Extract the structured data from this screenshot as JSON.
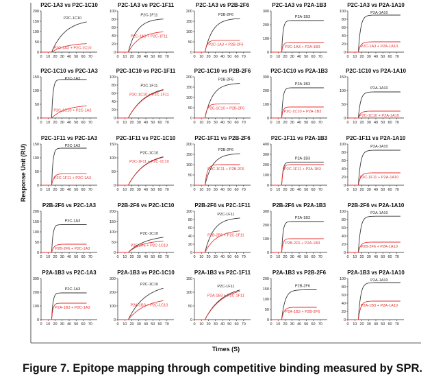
{
  "figure": {
    "y_axis_title": "Response Unit (RU)",
    "x_axis_title": "Times (S)",
    "caption": "Figure 7. Epitope mapping through competitive binding measured by SPR."
  },
  "chart_data": [
    {
      "type": "line",
      "title": "P2C-1A3 vs P2C-1C10",
      "xlim": [
        0,
        80
      ],
      "xticks": [
        0,
        10,
        20,
        30,
        40,
        50,
        60,
        70
      ],
      "ylim": [
        0,
        200
      ],
      "yticks": [
        0,
        50,
        100,
        150,
        200
      ],
      "series": [
        {
          "name": "P2C-1C10",
          "color": "#333333",
          "plateau": 160,
          "rate": 0.05,
          "end": 65
        },
        {
          "name": "P2C-1A3 + P2C-1C10",
          "color": "#e8312f",
          "plateau": 45,
          "rate": 0.05,
          "end": 65
        }
      ]
    },
    {
      "type": "line",
      "title": "P2C-1A3 vs P2C-1F11",
      "xlim": [
        0,
        80
      ],
      "xticks": [
        0,
        10,
        20,
        30,
        40,
        50,
        60,
        70
      ],
      "ylim": [
        0,
        100
      ],
      "yticks": [
        0,
        20,
        40,
        60,
        80,
        100
      ],
      "series": [
        {
          "name": "P2C-1F11",
          "color": "#333333",
          "plateau": 82,
          "rate": 0.08,
          "end": 65
        },
        {
          "name": "P2C-1A3 + P2C-1F11",
          "color": "#e8312f",
          "plateau": 52,
          "rate": 0.06,
          "end": 65
        }
      ]
    },
    {
      "type": "line",
      "title": "P2C-1A3 vs P2B-2F6",
      "xlim": [
        0,
        80
      ],
      "xticks": [
        0,
        10,
        20,
        30,
        40,
        50,
        60,
        70
      ],
      "ylim": [
        0,
        200
      ],
      "yticks": [
        0,
        50,
        100,
        150,
        200
      ],
      "series": [
        {
          "name": "P2B-2F6",
          "color": "#333333",
          "plateau": 165,
          "rate": 0.09,
          "end": 65
        },
        {
          "name": "P2C-1A3 + P2B-2F6",
          "color": "#e8312f",
          "plateau": 58,
          "rate": 0.3,
          "end": 65
        }
      ]
    },
    {
      "type": "line",
      "title": "P2C-1A3 vs P2A-1B3",
      "xlim": [
        0,
        80
      ],
      "xticks": [
        0,
        10,
        20,
        30,
        40,
        50,
        60,
        70
      ],
      "ylim": [
        0,
        300
      ],
      "yticks": [
        0,
        100,
        200,
        300
      ],
      "series": [
        {
          "name": "P2A-1B3",
          "color": "#333333",
          "plateau": 230,
          "rate": 0.5,
          "end": 75
        },
        {
          "name": "P2C-1A3 + P2A-1B3",
          "color": "#e8312f",
          "plateau": 70,
          "rate": 0.5,
          "end": 75
        }
      ]
    },
    {
      "type": "line",
      "title": "P2C-1A3 vs P2A-1A10",
      "xlim": [
        0,
        80
      ],
      "xticks": [
        0,
        10,
        20,
        30,
        40,
        50,
        60,
        70
      ],
      "ylim": [
        0,
        100
      ],
      "yticks": [
        0,
        20,
        40,
        60,
        80,
        100
      ],
      "series": [
        {
          "name": "P2A-1A10",
          "color": "#333333",
          "plateau": 90,
          "rate": 0.3,
          "end": 75
        },
        {
          "name": "P2C-1A3 + P2A-1A10",
          "color": "#e8312f",
          "plateau": 25,
          "rate": 0.3,
          "end": 75
        }
      ]
    },
    {
      "type": "line",
      "title": "P2C-1C10 vs P2C-1A3",
      "xlim": [
        0,
        80
      ],
      "xticks": [
        0,
        10,
        20,
        30,
        40,
        50,
        60,
        70
      ],
      "ylim": [
        0,
        150
      ],
      "yticks": [
        0,
        50,
        100,
        150
      ],
      "series": [
        {
          "name": "P2C-1A3",
          "color": "#333333",
          "plateau": 140,
          "rate": 0.5,
          "end": 65
        },
        {
          "name": "P2C-1C10 + P2C-1A3",
          "color": "#e8312f",
          "plateau": 48,
          "rate": 0.05,
          "end": 65
        }
      ]
    },
    {
      "type": "line",
      "title": "P2C-1C10 vs P2C-1F11",
      "xlim": [
        0,
        80
      ],
      "xticks": [
        0,
        10,
        20,
        30,
        40,
        50,
        60,
        70
      ],
      "ylim": [
        0,
        100
      ],
      "yticks": [
        0,
        20,
        40,
        60,
        80,
        100
      ],
      "series": [
        {
          "name": "P2C-1F11",
          "color": "#333333",
          "plateau": 80,
          "rate": 0.04,
          "end": 65
        },
        {
          "name": "P2C-1C10 + P2C-1F11",
          "color": "#e8312f",
          "plateau": 78,
          "rate": 0.04,
          "end": 65
        }
      ]
    },
    {
      "type": "line",
      "title": "P2C-1C10 vs P2B-2F6",
      "xlim": [
        0,
        80
      ],
      "xticks": [
        0,
        10,
        20,
        30,
        40,
        50,
        60,
        70
      ],
      "ylim": [
        0,
        200
      ],
      "yticks": [
        0,
        50,
        100,
        150,
        200
      ],
      "series": [
        {
          "name": "P2B-2F6",
          "color": "#333333",
          "plateau": 170,
          "rate": 0.09,
          "end": 65
        },
        {
          "name": "P2C-1C10 + P2B-2F6",
          "color": "#e8312f",
          "plateau": 68,
          "rate": 0.3,
          "end": 65
        }
      ]
    },
    {
      "type": "line",
      "title": "P2C-1C10 vs P2A-1B3",
      "xlim": [
        0,
        80
      ],
      "xticks": [
        0,
        10,
        20,
        30,
        40,
        50,
        60,
        70
      ],
      "ylim": [
        0,
        300
      ],
      "yticks": [
        0,
        100,
        200,
        300
      ],
      "series": [
        {
          "name": "P2A-1B3",
          "color": "#333333",
          "plateau": 220,
          "rate": 0.5,
          "end": 75
        },
        {
          "name": "P2C-1C10 + P2A-1B3",
          "color": "#e8312f",
          "plateau": 80,
          "rate": 0.5,
          "end": 75
        }
      ]
    },
    {
      "type": "line",
      "title": "P2C-1C10 vs P2A-1A10",
      "xlim": [
        0,
        80
      ],
      "xticks": [
        0,
        10,
        20,
        30,
        40,
        50,
        60,
        70
      ],
      "ylim": [
        0,
        150
      ],
      "yticks": [
        0,
        50,
        100,
        150
      ],
      "series": [
        {
          "name": "P2A-1A10",
          "color": "#333333",
          "plateau": 95,
          "rate": 0.3,
          "end": 75
        },
        {
          "name": "P2C-1C10 + P2A-1A10",
          "color": "#e8312f",
          "plateau": 25,
          "rate": 0.3,
          "end": 75
        }
      ]
    },
    {
      "type": "line",
      "title": "P2C-1F11 vs P2C-1A3",
      "xlim": [
        0,
        80
      ],
      "xticks": [
        0,
        10,
        20,
        30,
        40,
        50,
        60,
        70
      ],
      "ylim": [
        0,
        150
      ],
      "yticks": [
        0,
        50,
        100,
        150
      ],
      "series": [
        {
          "name": "P2C-1A3",
          "color": "#333333",
          "plateau": 135,
          "rate": 0.5,
          "end": 65
        },
        {
          "name": "P2C-1F11 + P2C-1A3",
          "color": "#e8312f",
          "plateau": 42,
          "rate": 0.3,
          "end": 65
        }
      ]
    },
    {
      "type": "line",
      "title": "P2C-1F11 vs P2C-1C10",
      "xlim": [
        0,
        80
      ],
      "xticks": [
        0,
        10,
        20,
        30,
        40,
        50,
        60,
        70
      ],
      "ylim": [
        0,
        150
      ],
      "yticks": [
        0,
        50,
        100,
        150
      ],
      "series": [
        {
          "name": "P2C-1C10",
          "color": "#333333",
          "plateau": 120,
          "rate": 0.04,
          "end": 65
        },
        {
          "name": "P2C-1F11 + P2C-1C10",
          "color": "#e8312f",
          "plateau": 118,
          "rate": 0.04,
          "end": 65
        }
      ]
    },
    {
      "type": "line",
      "title": "P2C-1F11 vs P2B-2F6",
      "xlim": [
        0,
        80
      ],
      "xticks": [
        0,
        10,
        20,
        30,
        40,
        50,
        60,
        70
      ],
      "ylim": [
        0,
        200
      ],
      "yticks": [
        0,
        50,
        100,
        150,
        200
      ],
      "series": [
        {
          "name": "P2B-2F6",
          "color": "#333333",
          "plateau": 155,
          "rate": 0.09,
          "end": 65
        },
        {
          "name": "P2C-1F11 + P2B-2F6",
          "color": "#e8312f",
          "plateau": 100,
          "rate": 0.3,
          "end": 65
        }
      ]
    },
    {
      "type": "line",
      "title": "P2C-1F11 vs P2A-1B3",
      "xlim": [
        0,
        80
      ],
      "xticks": [
        0,
        10,
        20,
        30,
        40,
        50,
        60,
        70
      ],
      "ylim": [
        0,
        400
      ],
      "yticks": [
        0,
        100,
        200,
        300,
        400
      ],
      "series": [
        {
          "name": "P2A-1B3",
          "color": "#333333",
          "plateau": 225,
          "rate": 0.5,
          "end": 75
        },
        {
          "name": "P2C-1F11 + P2A-1B3",
          "color": "#e8312f",
          "plateau": 200,
          "rate": 0.5,
          "end": 75
        }
      ]
    },
    {
      "type": "line",
      "title": "P2C-1F11 vs P2A-1A10",
      "xlim": [
        0,
        80
      ],
      "xticks": [
        0,
        10,
        20,
        30,
        40,
        50,
        60,
        70
      ],
      "ylim": [
        0,
        100
      ],
      "yticks": [
        0,
        20,
        40,
        60,
        80,
        100
      ],
      "series": [
        {
          "name": "P2A-1A10",
          "color": "#333333",
          "plateau": 85,
          "rate": 0.3,
          "end": 75
        },
        {
          "name": "P2C-1F11 + P2A-1A10",
          "color": "#e8312f",
          "plateau": 30,
          "rate": 0.3,
          "end": 75
        }
      ]
    },
    {
      "type": "line",
      "title": "P2B-2F6 vs P2C-1A3",
      "xlim": [
        0,
        80
      ],
      "xticks": [
        0,
        10,
        20,
        30,
        40,
        50,
        60,
        70
      ],
      "ylim": [
        0,
        200
      ],
      "yticks": [
        0,
        50,
        100,
        150,
        200
      ],
      "series": [
        {
          "name": "P2C-1A3",
          "color": "#333333",
          "plateau": 135,
          "rate": 0.5,
          "end": 65
        },
        {
          "name": "P2B-2F6 + P2C-1A3",
          "color": "#e8312f",
          "plateau": 40,
          "rate": 0.3,
          "end": 65
        }
      ]
    },
    {
      "type": "line",
      "title": "P2B-2F6 vs P2C-1C10",
      "xlim": [
        0,
        80
      ],
      "xticks": [
        0,
        10,
        20,
        30,
        40,
        50,
        60,
        70
      ],
      "ylim": [
        0,
        200
      ],
      "yticks": [
        0,
        50,
        100,
        150,
        200
      ],
      "series": [
        {
          "name": "P2C-1C10",
          "color": "#333333",
          "plateau": 85,
          "rate": 0.04,
          "end": 65
        },
        {
          "name": "P2B-2F6 + P2C-1C10",
          "color": "#e8312f",
          "plateau": 60,
          "rate": 0.05,
          "end": 65
        }
      ]
    },
    {
      "type": "line",
      "title": "P2B-2F6 vs P2C-1F11",
      "xlim": [
        0,
        80
      ],
      "xticks": [
        0,
        10,
        20,
        30,
        40,
        50,
        60,
        70
      ],
      "ylim": [
        0,
        100
      ],
      "yticks": [
        0,
        20,
        40,
        60,
        80,
        100
      ],
      "series": [
        {
          "name": "P2C-1F11",
          "color": "#333333",
          "plateau": 85,
          "rate": 0.08,
          "end": 65
        },
        {
          "name": "P2B-2F6 + P2C-1F11",
          "color": "#e8312f",
          "plateau": 55,
          "rate": 0.06,
          "end": 65
        }
      ]
    },
    {
      "type": "line",
      "title": "P2B-2F6 vs P2A-1B3",
      "xlim": [
        0,
        80
      ],
      "xticks": [
        0,
        10,
        20,
        30,
        40,
        50,
        60,
        70
      ],
      "ylim": [
        0,
        300
      ],
      "yticks": [
        0,
        100,
        200,
        300
      ],
      "series": [
        {
          "name": "P2A-1B3",
          "color": "#333333",
          "plateau": 225,
          "rate": 0.5,
          "end": 75
        },
        {
          "name": "P2B-2F6 + P2A-1B3",
          "color": "#e8312f",
          "plateau": 100,
          "rate": 0.5,
          "end": 75
        }
      ]
    },
    {
      "type": "line",
      "title": "P2B-2F6 vs P2A-1A10",
      "xlim": [
        0,
        80
      ],
      "xticks": [
        0,
        10,
        20,
        30,
        40,
        50,
        60,
        70
      ],
      "ylim": [
        0,
        100
      ],
      "yticks": [
        0,
        20,
        40,
        60,
        80,
        100
      ],
      "series": [
        {
          "name": "P2A-1A10",
          "color": "#333333",
          "plateau": 88,
          "rate": 0.3,
          "end": 75
        },
        {
          "name": "P2B-2F6 + P2A-1A10",
          "color": "#e8312f",
          "plateau": 25,
          "rate": 0.3,
          "end": 75
        }
      ]
    },
    {
      "type": "line",
      "title": "P2A-1B3 vs P2C-1A3",
      "xlim": [
        0,
        80
      ],
      "xticks": [
        0,
        10,
        20,
        30,
        40,
        50,
        60,
        70
      ],
      "ylim": [
        0,
        300
      ],
      "yticks": [
        0,
        100,
        200,
        300
      ],
      "series": [
        {
          "name": "P2C-1A3",
          "color": "#333333",
          "plateau": 195,
          "rate": 0.5,
          "end": 65
        },
        {
          "name": "P2A-1B3 + P2C-1A3",
          "color": "#e8312f",
          "plateau": 120,
          "rate": 0.5,
          "end": 65
        }
      ]
    },
    {
      "type": "line",
      "title": "P2A-1B3 vs P2C-1C10",
      "xlim": [
        0,
        80
      ],
      "xticks": [
        0,
        10,
        20,
        30,
        40,
        50,
        60,
        70
      ],
      "ylim": [
        0,
        300
      ],
      "yticks": [
        0,
        100,
        200,
        300
      ],
      "series": [
        {
          "name": "P2C-1C10",
          "color": "#333333",
          "plateau": 265,
          "rate": 0.04,
          "end": 65
        },
        {
          "name": "P2A-1B3 + P2C-1C10",
          "color": "#e8312f",
          "plateau": 160,
          "rate": 0.04,
          "end": 65
        }
      ]
    },
    {
      "type": "line",
      "title": "P2A-1B3 vs P2C-1F11",
      "xlim": [
        0,
        80
      ],
      "xticks": [
        0,
        10,
        20,
        30,
        40,
        50,
        60,
        70
      ],
      "ylim": [
        0,
        150
      ],
      "yticks": [
        0,
        50,
        100,
        150
      ],
      "series": [
        {
          "name": "P2C-1F11",
          "color": "#333333",
          "plateau": 125,
          "rate": 0.04,
          "end": 65
        },
        {
          "name": "P2A-1B3 + P2C-1F11",
          "color": "#e8312f",
          "plateau": 120,
          "rate": 0.04,
          "end": 65
        }
      ]
    },
    {
      "type": "line",
      "title": "P2A-1B3 vs P2B-2F6",
      "xlim": [
        0,
        80
      ],
      "xticks": [
        0,
        10,
        20,
        30,
        40,
        50,
        60,
        70
      ],
      "ylim": [
        0,
        200
      ],
      "yticks": [
        0,
        50,
        100,
        150,
        200
      ],
      "series": [
        {
          "name": "P2B-2F6",
          "color": "#333333",
          "plateau": 145,
          "rate": 0.2,
          "end": 65
        },
        {
          "name": "P2A-1B3 + P2B-2F6",
          "color": "#e8312f",
          "plateau": 60,
          "rate": 0.3,
          "end": 65
        }
      ]
    },
    {
      "type": "line",
      "title": "P2A-1B3 vs P2A-1A10",
      "xlim": [
        0,
        80
      ],
      "xticks": [
        0,
        10,
        20,
        30,
        40,
        50,
        60,
        70
      ],
      "ylim": [
        0,
        100
      ],
      "yticks": [
        0,
        20,
        40,
        60,
        80,
        100
      ],
      "series": [
        {
          "name": "P2A-1A10",
          "color": "#333333",
          "plateau": 90,
          "rate": 0.3,
          "end": 75
        },
        {
          "name": "P2A-1B3 + P2A-1A10",
          "color": "#e8312f",
          "plateau": 45,
          "rate": 0.3,
          "end": 75
        }
      ]
    }
  ]
}
